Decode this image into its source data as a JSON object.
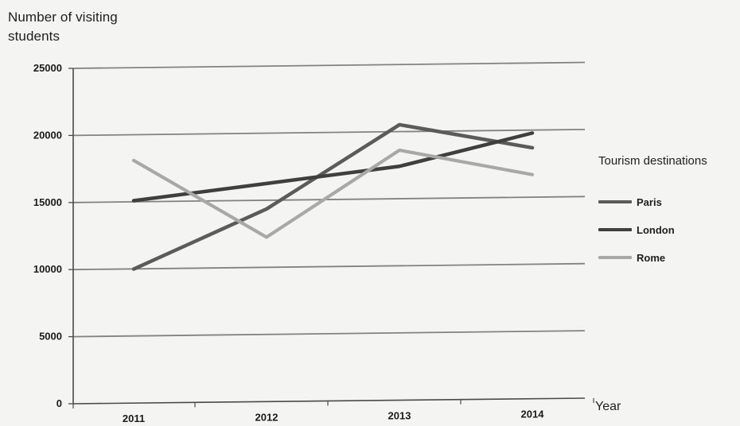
{
  "chart_data": {
    "type": "line",
    "title": "",
    "ylabel": "Number of visiting students",
    "xlabel": "Year",
    "ylim": [
      0,
      25000
    ],
    "yticks": [
      0,
      5000,
      10000,
      15000,
      20000,
      25000
    ],
    "ytick_labels": [
      "0",
      "5000",
      "10000",
      "15000",
      "20000",
      "25000"
    ],
    "categories": [
      "2011",
      "2012",
      "2013",
      "2014"
    ],
    "grid": true,
    "legend": {
      "title": "Tourism destinations",
      "placement": "right"
    },
    "series": [
      {
        "name": "Paris",
        "color": "#5b5b5b",
        "values": [
          10000,
          14400,
          20600,
          18800
        ]
      },
      {
        "name": "London",
        "color": "#3f3f3f",
        "values": [
          15100,
          16300,
          17500,
          19900
        ]
      },
      {
        "name": "Rome",
        "color": "#a8a8a8",
        "values": [
          18100,
          12300,
          18700,
          16800
        ]
      }
    ]
  }
}
